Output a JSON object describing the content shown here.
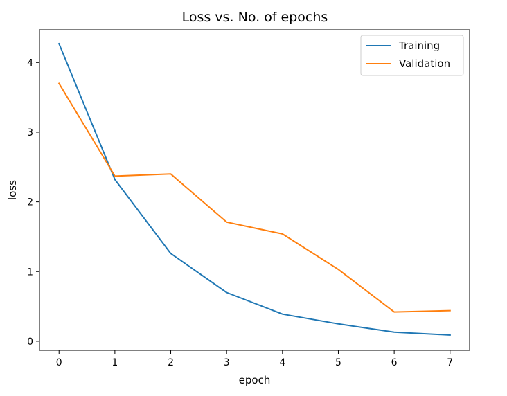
{
  "chart_data": {
    "type": "line",
    "title": "Loss vs. No. of epochs",
    "xlabel": "epoch",
    "ylabel": "loss",
    "x": [
      0,
      1,
      2,
      3,
      4,
      5,
      6,
      7
    ],
    "xlim": [
      -0.35,
      7.35
    ],
    "ylim": [
      -0.13,
      4.47
    ],
    "xticks": [
      "0",
      "1",
      "2",
      "3",
      "4",
      "5",
      "6",
      "7"
    ],
    "yticks": [
      "0",
      "1",
      "2",
      "3",
      "4"
    ],
    "grid": false,
    "legend_position": "top-right",
    "series": [
      {
        "name": "Training",
        "color": "#1f77b4",
        "values": [
          4.27,
          2.32,
          1.26,
          0.7,
          0.39,
          0.25,
          0.13,
          0.09
        ]
      },
      {
        "name": "Validation",
        "color": "#ff7f0e",
        "values": [
          3.7,
          2.37,
          2.4,
          1.71,
          1.54,
          1.03,
          0.42,
          0.44
        ]
      }
    ]
  }
}
